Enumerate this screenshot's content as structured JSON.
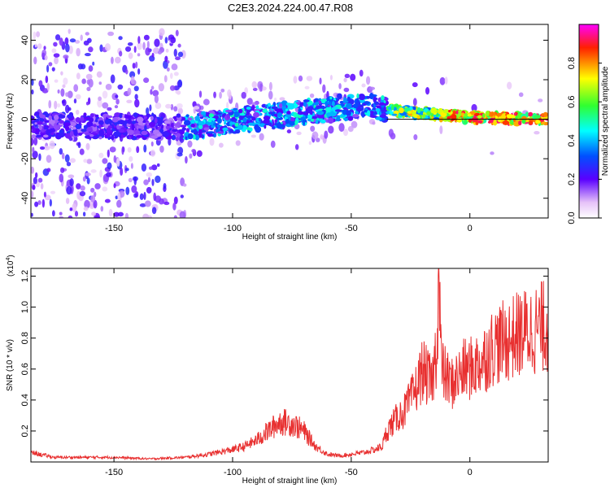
{
  "title": "C2E3.2024.224.00.47.R08",
  "colors": {
    "snr_line": "#e83030",
    "colorbar_top": "#ff00ff"
  },
  "chart_data": [
    {
      "type": "heatmap",
      "xlabel": "Height of straight line (km)",
      "ylabel": "Frequency (Hz)",
      "xlim": [
        -185,
        33
      ],
      "ylim": [
        -50,
        48
      ],
      "xticks": [
        "-150",
        "-100",
        "-50",
        "0"
      ],
      "yticks": [
        "-40",
        "-20",
        "0",
        "20",
        "40"
      ],
      "grid": false,
      "colorbar": {
        "label": "Normalized spectral amplitude",
        "ticks": [
          "0.0",
          "0.2",
          "0.4",
          "0.6",
          "0.8"
        ],
        "range": [
          0,
          1
        ],
        "colormap": "magenta-blue-cyan-green-yellow-red"
      },
      "trend": [
        {
          "x": -185,
          "f": -3
        },
        {
          "x": -120,
          "f": -4
        },
        {
          "x": -100,
          "f": -1
        },
        {
          "x": -80,
          "f": 2
        },
        {
          "x": -60,
          "f": 5
        },
        {
          "x": -45,
          "f": 7
        },
        {
          "x": -35,
          "f": 5
        },
        {
          "x": -20,
          "f": 3
        },
        {
          "x": 0,
          "f": 1
        },
        {
          "x": 33,
          "f": 0
        }
      ]
    },
    {
      "type": "line",
      "xlabel": "Height of straight line (km)",
      "ylabel": "SNR (10 * v/v)",
      "y_multiplier": "(x10",
      "y_multiplier_exp": "4",
      "xlim": [
        -185,
        33
      ],
      "ylim": [
        0,
        1.25
      ],
      "xticks": [
        "-150",
        "-100",
        "-50",
        "0"
      ],
      "yticks": [
        "0.2",
        "0.4",
        "0.6",
        "0.8",
        "1.0",
        "1.2"
      ],
      "grid": false,
      "series": [
        {
          "x": [
            -185,
            -175,
            -165,
            -150,
            -135,
            -120,
            -110,
            -100,
            -95,
            -90,
            -85,
            -80,
            -75,
            -70,
            -65,
            -60,
            -55,
            -50,
            -45,
            -40,
            -37,
            -35,
            -30,
            -28,
            -25,
            -22,
            -20,
            -18,
            -16,
            -14,
            -13,
            -12,
            -10,
            -8,
            -5,
            -2,
            0,
            5,
            10,
            15,
            20,
            25,
            30,
            33
          ],
          "y": [
            0.06,
            0.03,
            0.03,
            0.03,
            0.02,
            0.03,
            0.05,
            0.08,
            0.1,
            0.14,
            0.2,
            0.26,
            0.25,
            0.2,
            0.1,
            0.05,
            0.04,
            0.05,
            0.06,
            0.08,
            0.1,
            0.2,
            0.3,
            0.32,
            0.4,
            0.5,
            0.6,
            0.55,
            0.5,
            0.75,
            1.2,
            0.6,
            0.55,
            0.5,
            0.55,
            0.6,
            0.6,
            0.65,
            0.75,
            0.78,
            0.82,
            0.85,
            0.87,
            0.88
          ]
        }
      ]
    }
  ]
}
